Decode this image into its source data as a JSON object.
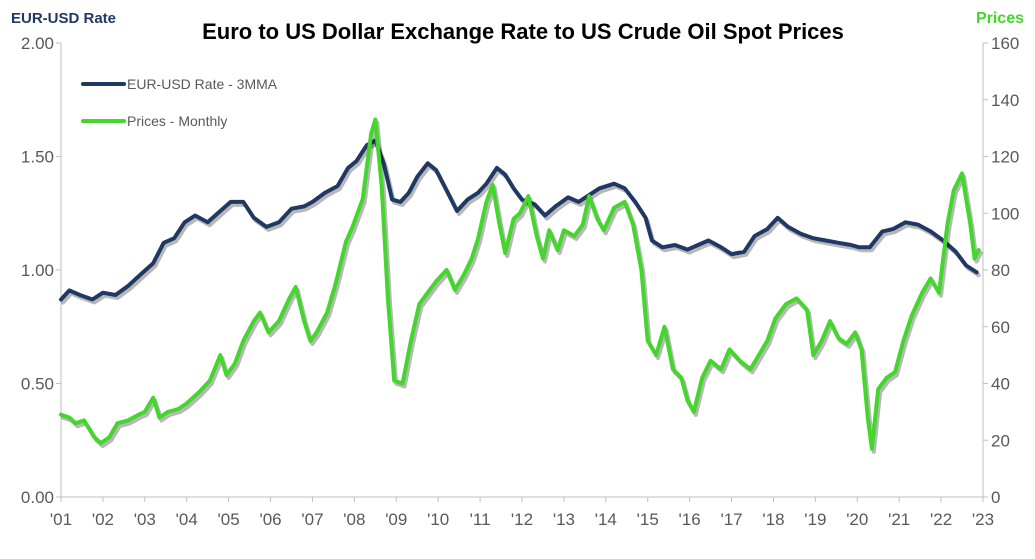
{
  "chart_data": {
    "type": "line",
    "title": "Euro to US Dollar Exchange Rate to US Crude Oil Spot Prices",
    "ylabel_left": "EUR-USD Rate",
    "ylabel_right": "Prices",
    "ylim_left": [
      0,
      2
    ],
    "ylim_right": [
      0,
      160
    ],
    "xlim": [
      2001,
      2023
    ],
    "yticks_left": [
      "0.00",
      "0.50",
      "1.00",
      "1.50",
      "2.00"
    ],
    "yticks_right": [
      "0",
      "20",
      "40",
      "60",
      "80",
      "100",
      "120",
      "140",
      "160"
    ],
    "xticks": [
      "'01",
      "'02",
      "'03",
      "'04",
      "'05",
      "'06",
      "'07",
      "'08",
      "'09",
      "'10",
      "'11",
      "'12",
      "'13",
      "'14",
      "'15",
      "'16",
      "'17",
      "'18",
      "'19",
      "'20",
      "'21",
      "'22",
      "'23"
    ],
    "grid": false,
    "legend_position": "top-left",
    "series": [
      {
        "name": "EUR-USD Rate - 3MMA",
        "axis": "left",
        "color": "#1f3864",
        "points": [
          [
            2001.0,
            0.87
          ],
          [
            2001.2,
            0.91
          ],
          [
            2001.45,
            0.89
          ],
          [
            2001.75,
            0.87
          ],
          [
            2002.0,
            0.9
          ],
          [
            2002.3,
            0.89
          ],
          [
            2002.6,
            0.93
          ],
          [
            2002.9,
            0.98
          ],
          [
            2003.2,
            1.03
          ],
          [
            2003.45,
            1.12
          ],
          [
            2003.7,
            1.14
          ],
          [
            2003.95,
            1.21
          ],
          [
            2004.2,
            1.24
          ],
          [
            2004.5,
            1.21
          ],
          [
            2004.8,
            1.26
          ],
          [
            2005.05,
            1.3
          ],
          [
            2005.35,
            1.3
          ],
          [
            2005.6,
            1.23
          ],
          [
            2005.9,
            1.19
          ],
          [
            2006.2,
            1.21
          ],
          [
            2006.5,
            1.27
          ],
          [
            2006.8,
            1.28
          ],
          [
            2007.0,
            1.3
          ],
          [
            2007.3,
            1.34
          ],
          [
            2007.6,
            1.37
          ],
          [
            2007.85,
            1.45
          ],
          [
            2008.05,
            1.48
          ],
          [
            2008.3,
            1.55
          ],
          [
            2008.5,
            1.57
          ],
          [
            2008.7,
            1.47
          ],
          [
            2008.9,
            1.31
          ],
          [
            2009.1,
            1.3
          ],
          [
            2009.3,
            1.34
          ],
          [
            2009.5,
            1.41
          ],
          [
            2009.75,
            1.47
          ],
          [
            2009.95,
            1.44
          ],
          [
            2010.2,
            1.35
          ],
          [
            2010.45,
            1.26
          ],
          [
            2010.7,
            1.31
          ],
          [
            2010.95,
            1.34
          ],
          [
            2011.15,
            1.38
          ],
          [
            2011.4,
            1.45
          ],
          [
            2011.6,
            1.42
          ],
          [
            2011.8,
            1.36
          ],
          [
            2012.0,
            1.31
          ],
          [
            2012.3,
            1.29
          ],
          [
            2012.55,
            1.24
          ],
          [
            2012.8,
            1.28
          ],
          [
            2013.1,
            1.32
          ],
          [
            2013.35,
            1.3
          ],
          [
            2013.6,
            1.33
          ],
          [
            2013.85,
            1.36
          ],
          [
            2014.2,
            1.38
          ],
          [
            2014.45,
            1.36
          ],
          [
            2014.7,
            1.3
          ],
          [
            2014.95,
            1.23
          ],
          [
            2015.1,
            1.13
          ],
          [
            2015.35,
            1.1
          ],
          [
            2015.65,
            1.11
          ],
          [
            2015.95,
            1.09
          ],
          [
            2016.2,
            1.11
          ],
          [
            2016.45,
            1.13
          ],
          [
            2016.75,
            1.1
          ],
          [
            2017.0,
            1.07
          ],
          [
            2017.3,
            1.08
          ],
          [
            2017.55,
            1.15
          ],
          [
            2017.85,
            1.18
          ],
          [
            2018.1,
            1.23
          ],
          [
            2018.35,
            1.19
          ],
          [
            2018.65,
            1.16
          ],
          [
            2018.95,
            1.14
          ],
          [
            2019.25,
            1.13
          ],
          [
            2019.55,
            1.12
          ],
          [
            2019.85,
            1.11
          ],
          [
            2020.05,
            1.1
          ],
          [
            2020.3,
            1.1
          ],
          [
            2020.6,
            1.17
          ],
          [
            2020.85,
            1.18
          ],
          [
            2021.15,
            1.21
          ],
          [
            2021.45,
            1.2
          ],
          [
            2021.75,
            1.17
          ],
          [
            2022.05,
            1.13
          ],
          [
            2022.35,
            1.08
          ],
          [
            2022.6,
            1.02
          ],
          [
            2022.85,
            0.99
          ]
        ]
      },
      {
        "name": "Prices - Monthly",
        "axis": "right",
        "color": "#44d62c",
        "points": [
          [
            2001.0,
            29
          ],
          [
            2001.2,
            28
          ],
          [
            2001.35,
            26
          ],
          [
            2001.55,
            27
          ],
          [
            2001.8,
            21
          ],
          [
            2001.95,
            19
          ],
          [
            2002.15,
            21
          ],
          [
            2002.35,
            26
          ],
          [
            2002.6,
            27
          ],
          [
            2002.85,
            29
          ],
          [
            2003.0,
            30
          ],
          [
            2003.2,
            35
          ],
          [
            2003.35,
            28
          ],
          [
            2003.55,
            30
          ],
          [
            2003.8,
            31
          ],
          [
            2004.0,
            33
          ],
          [
            2004.3,
            37
          ],
          [
            2004.55,
            41
          ],
          [
            2004.8,
            50
          ],
          [
            2004.95,
            43
          ],
          [
            2005.15,
            47
          ],
          [
            2005.35,
            55
          ],
          [
            2005.6,
            62
          ],
          [
            2005.75,
            65
          ],
          [
            2005.95,
            58
          ],
          [
            2006.2,
            62
          ],
          [
            2006.45,
            70
          ],
          [
            2006.6,
            74
          ],
          [
            2006.8,
            62
          ],
          [
            2006.95,
            55
          ],
          [
            2007.1,
            58
          ],
          [
            2007.35,
            65
          ],
          [
            2007.55,
            75
          ],
          [
            2007.8,
            90
          ],
          [
            2007.95,
            95
          ],
          [
            2008.2,
            105
          ],
          [
            2008.4,
            128
          ],
          [
            2008.5,
            133
          ],
          [
            2008.65,
            110
          ],
          [
            2008.8,
            70
          ],
          [
            2008.95,
            41
          ],
          [
            2009.15,
            40
          ],
          [
            2009.35,
            55
          ],
          [
            2009.55,
            68
          ],
          [
            2009.75,
            72
          ],
          [
            2009.95,
            76
          ],
          [
            2010.2,
            80
          ],
          [
            2010.4,
            73
          ],
          [
            2010.6,
            78
          ],
          [
            2010.8,
            84
          ],
          [
            2010.95,
            91
          ],
          [
            2011.15,
            104
          ],
          [
            2011.3,
            110
          ],
          [
            2011.45,
            97
          ],
          [
            2011.6,
            86
          ],
          [
            2011.8,
            98
          ],
          [
            2011.95,
            100
          ],
          [
            2012.15,
            106
          ],
          [
            2012.35,
            92
          ],
          [
            2012.5,
            84
          ],
          [
            2012.65,
            94
          ],
          [
            2012.85,
            87
          ],
          [
            2013.0,
            94
          ],
          [
            2013.25,
            92
          ],
          [
            2013.45,
            96
          ],
          [
            2013.6,
            106
          ],
          [
            2013.8,
            98
          ],
          [
            2013.95,
            94
          ],
          [
            2014.2,
            102
          ],
          [
            2014.45,
            104
          ],
          [
            2014.65,
            96
          ],
          [
            2014.85,
            80
          ],
          [
            2015.0,
            55
          ],
          [
            2015.2,
            50
          ],
          [
            2015.4,
            60
          ],
          [
            2015.6,
            45
          ],
          [
            2015.8,
            42
          ],
          [
            2015.95,
            34
          ],
          [
            2016.1,
            30
          ],
          [
            2016.3,
            42
          ],
          [
            2016.5,
            48
          ],
          [
            2016.75,
            45
          ],
          [
            2016.95,
            52
          ],
          [
            2017.2,
            48
          ],
          [
            2017.45,
            45
          ],
          [
            2017.65,
            50
          ],
          [
            2017.85,
            55
          ],
          [
            2018.05,
            63
          ],
          [
            2018.3,
            68
          ],
          [
            2018.55,
            70
          ],
          [
            2018.8,
            66
          ],
          [
            2018.95,
            50
          ],
          [
            2019.15,
            55
          ],
          [
            2019.35,
            62
          ],
          [
            2019.55,
            56
          ],
          [
            2019.75,
            54
          ],
          [
            2019.95,
            58
          ],
          [
            2020.1,
            52
          ],
          [
            2020.25,
            28
          ],
          [
            2020.35,
            17
          ],
          [
            2020.5,
            38
          ],
          [
            2020.7,
            42
          ],
          [
            2020.9,
            44
          ],
          [
            2021.1,
            55
          ],
          [
            2021.3,
            64
          ],
          [
            2021.55,
            72
          ],
          [
            2021.75,
            77
          ],
          [
            2021.95,
            72
          ],
          [
            2022.15,
            96
          ],
          [
            2022.3,
            108
          ],
          [
            2022.5,
            114
          ],
          [
            2022.7,
            96
          ],
          [
            2022.8,
            84
          ],
          [
            2022.9,
            87
          ]
        ]
      }
    ]
  }
}
